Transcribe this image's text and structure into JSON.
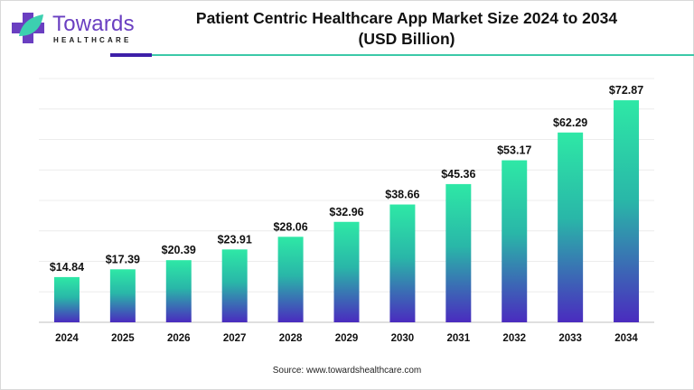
{
  "brand": {
    "name": "Towards",
    "sub": "HEALTHCARE"
  },
  "chart_data": {
    "type": "bar",
    "title": "Patient Centric Healthcare App Market Size 2024 to 2034",
    "subtitle": "(USD Billion)",
    "categories": [
      "2024",
      "2025",
      "2026",
      "2027",
      "2028",
      "2029",
      "2030",
      "2031",
      "2032",
      "2033",
      "2034"
    ],
    "values": [
      14.84,
      17.39,
      20.39,
      23.91,
      28.06,
      32.96,
      38.66,
      45.36,
      53.17,
      62.29,
      72.87
    ],
    "value_labels": [
      "$14.84",
      "$17.39",
      "$20.39",
      "$23.91",
      "$28.06",
      "$32.96",
      "$38.66",
      "$45.36",
      "$53.17",
      "$62.29",
      "$72.87"
    ],
    "xlabel": "",
    "ylabel": "",
    "ylim": [
      0,
      80
    ],
    "grid": true,
    "legend": "none",
    "colors": {
      "top": "#2ee8a6",
      "bottom": "#4a2bbf"
    }
  },
  "source": "Source: www.towardshealthcare.com"
}
